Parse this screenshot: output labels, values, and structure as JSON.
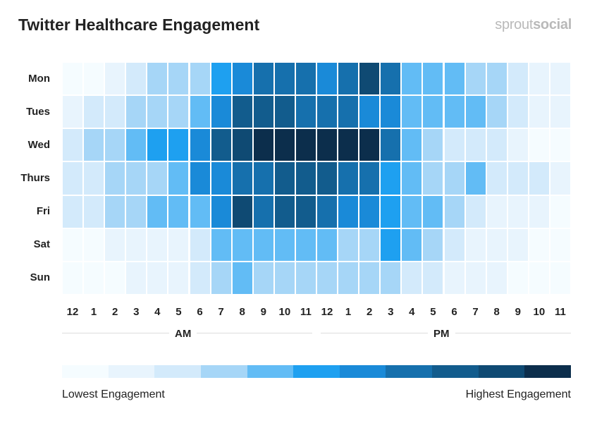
{
  "title": "Twitter Healthcare Engagement",
  "logo": {
    "part1": "sprout",
    "part2": "social"
  },
  "chart_data": {
    "type": "heatmap",
    "title": "Twitter Healthcare Engagement",
    "rows": [
      "Mon",
      "Tues",
      "Wed",
      "Thurs",
      "Fri",
      "Sat",
      "Sun"
    ],
    "columns": [
      "12",
      "1",
      "2",
      "3",
      "4",
      "5",
      "6",
      "7",
      "8",
      "9",
      "10",
      "11",
      "12",
      "1",
      "2",
      "3",
      "4",
      "5",
      "6",
      "7",
      "8",
      "9",
      "10",
      "11"
    ],
    "periods": [
      "AM",
      "PM"
    ],
    "levels": 11,
    "values": [
      [
        1,
        1,
        2,
        3,
        4,
        4,
        4,
        6,
        7,
        8,
        8,
        8,
        7,
        8,
        10,
        8,
        5,
        5,
        5,
        4,
        4,
        3,
        2,
        2
      ],
      [
        2,
        3,
        3,
        4,
        4,
        4,
        5,
        7,
        9,
        9,
        9,
        8,
        8,
        8,
        7,
        7,
        5,
        5,
        5,
        5,
        4,
        3,
        2,
        2
      ],
      [
        3,
        4,
        4,
        5,
        6,
        6,
        7,
        9,
        10,
        11,
        11,
        11,
        11,
        11,
        11,
        8,
        5,
        4,
        3,
        3,
        3,
        2,
        1,
        1
      ],
      [
        3,
        3,
        4,
        4,
        4,
        5,
        7,
        7,
        8,
        8,
        9,
        9,
        9,
        8,
        8,
        6,
        5,
        4,
        4,
        5,
        3,
        3,
        3,
        2
      ],
      [
        3,
        3,
        4,
        4,
        5,
        5,
        5,
        7,
        10,
        8,
        9,
        9,
        8,
        7,
        7,
        6,
        5,
        5,
        4,
        3,
        2,
        2,
        2,
        1
      ],
      [
        1,
        1,
        2,
        2,
        2,
        2,
        3,
        5,
        5,
        5,
        5,
        5,
        5,
        4,
        4,
        6,
        5,
        4,
        3,
        2,
        2,
        2,
        1,
        1
      ],
      [
        1,
        1,
        1,
        2,
        2,
        2,
        3,
        4,
        5,
        4,
        4,
        4,
        4,
        4,
        4,
        4,
        3,
        3,
        2,
        2,
        2,
        1,
        1,
        1
      ]
    ],
    "colorscale": [
      "#f5fcff",
      "#e8f4fd",
      "#d3eafb",
      "#a6d6f7",
      "#62bcf5",
      "#1ea0f0",
      "#1a8ad8",
      "#1670ad",
      "#125c8d",
      "#0f4a73",
      "#0c2e4c"
    ],
    "legend": {
      "low": "Lowest Engagement",
      "high": "Highest Engagement",
      "placement": "bottom"
    }
  }
}
